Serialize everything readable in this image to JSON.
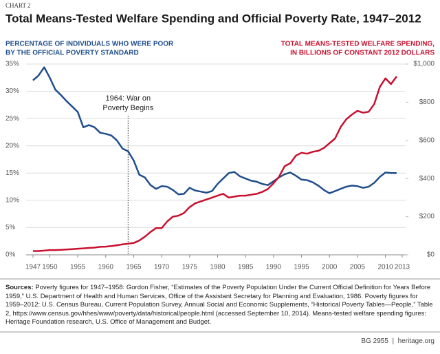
{
  "chart_data": {
    "type": "line",
    "chart_label": "CHART 2",
    "title": "Total Means-Tested Welfare Spending and Official Poverty Rate, 1947–2012",
    "y_label": [
      "PERCENTAGE OF INDIVIDUALS WHO WERE POOR",
      "BY THE OFFICIAL POVERTY STANDARD"
    ],
    "y2_label": [
      "TOTAL MEANS-TESTED WELFARE SPENDING,",
      "IN BILLIONS OF CONSTANT 2012 DOLLARS"
    ],
    "annotation": {
      "lines": [
        "1964: War on",
        "Poverty Begins"
      ],
      "x": 1964
    },
    "x": [
      1947,
      1948,
      1949,
      1950,
      1951,
      1952,
      1953,
      1954,
      1955,
      1956,
      1957,
      1958,
      1959,
      1960,
      1961,
      1962,
      1963,
      1964,
      1965,
      1966,
      1967,
      1968,
      1969,
      1970,
      1971,
      1972,
      1973,
      1974,
      1975,
      1976,
      1977,
      1978,
      1979,
      1980,
      1981,
      1982,
      1983,
      1984,
      1985,
      1986,
      1987,
      1988,
      1989,
      1990,
      1991,
      1992,
      1993,
      1994,
      1995,
      1996,
      1997,
      1998,
      1999,
      2000,
      2001,
      2002,
      2003,
      2004,
      2005,
      2006,
      2007,
      2008,
      2009,
      2010,
      2011,
      2012
    ],
    "series": [
      {
        "name": "Official poverty rate",
        "color": "#1f4e8c",
        "axis": "y",
        "values": [
          32,
          32.9,
          34.4,
          32.5,
          30.3,
          29.3,
          28.2,
          27.2,
          26.2,
          23.4,
          23.8,
          23.4,
          22.4,
          22.2,
          21.9,
          21.0,
          19.5,
          19.0,
          17.3,
          14.7,
          14.2,
          12.8,
          12.1,
          12.6,
          12.5,
          11.9,
          11.1,
          11.2,
          12.3,
          11.8,
          11.6,
          11.4,
          11.7,
          13.0,
          14.0,
          15.0,
          15.2,
          14.4,
          14.0,
          13.6,
          13.4,
          13.0,
          12.8,
          13.5,
          14.2,
          14.8,
          15.1,
          14.5,
          13.8,
          13.7,
          13.3,
          12.7,
          11.9,
          11.3,
          11.7,
          12.1,
          12.5,
          12.7,
          12.6,
          12.3,
          12.5,
          13.2,
          14.3,
          15.1,
          15.0,
          15.0
        ]
      },
      {
        "name": "Means-tested welfare spending",
        "color": "#c8102e",
        "axis": "y2",
        "values": [
          20,
          20,
          22,
          25,
          25,
          26,
          28,
          30,
          32,
          34,
          36,
          38,
          42,
          43,
          46,
          50,
          55,
          58,
          62,
          75,
          95,
          120,
          140,
          140,
          175,
          200,
          205,
          220,
          250,
          270,
          280,
          290,
          300,
          310,
          320,
          300,
          305,
          310,
          310,
          315,
          320,
          330,
          345,
          375,
          410,
          465,
          480,
          520,
          535,
          530,
          540,
          545,
          560,
          585,
          610,
          670,
          710,
          735,
          755,
          745,
          750,
          790,
          880,
          925,
          895,
          935
        ]
      }
    ],
    "xlim": [
      1947,
      2013
    ],
    "xticks": [
      1947,
      1950,
      1955,
      1960,
      1965,
      1970,
      1975,
      1980,
      1985,
      1990,
      1995,
      2000,
      2005,
      2010,
      2013
    ],
    "ylim": [
      0,
      35
    ],
    "yticks": [
      {
        "value": 0,
        "label": "0%"
      },
      {
        "value": 5,
        "label": "5%"
      },
      {
        "value": 10,
        "label": "10%"
      },
      {
        "value": 15,
        "label": "15%"
      },
      {
        "value": 20,
        "label": "20%"
      },
      {
        "value": 25,
        "label": "25%"
      },
      {
        "value": 30,
        "label": "30%"
      },
      {
        "value": 35,
        "label": "35%"
      }
    ],
    "y2lim": [
      0,
      1000
    ],
    "y2ticks": [
      {
        "value": 0,
        "label": "$0"
      },
      {
        "value": 200,
        "label": "$200"
      },
      {
        "value": 400,
        "label": "$400"
      },
      {
        "value": 600,
        "label": "$600"
      },
      {
        "value": 800,
        "label": "$800"
      },
      {
        "value": 1000,
        "label": "$1,000"
      }
    ],
    "grid": true,
    "sources_label": "Sources:",
    "sources_text": "Poverty figures for 1947–1958: Gordon Fisher, “Estimates of the Poverty Population Under the Current Official Definition for Years Before 1959,” U.S. Department of Health and Human Services, Office of the Assistant Secretary for Planning and Evaluation, 1986. Poverty figures for 1959–2012: U.S. Census Bureau, Current Population Survey, Annual Social and Economic Supplements, “Historical Poverty Tables—People,” Table 2, https://www.census.gov/hhes/www/poverty/data/historical/people.html (accessed September 10, 2014). Means-tested welfare spending figures: Heritage Foundation research, U.S. Office of Management and Budget.",
    "footer_id": "BG 2955",
    "footer_site": "heritage.org"
  }
}
